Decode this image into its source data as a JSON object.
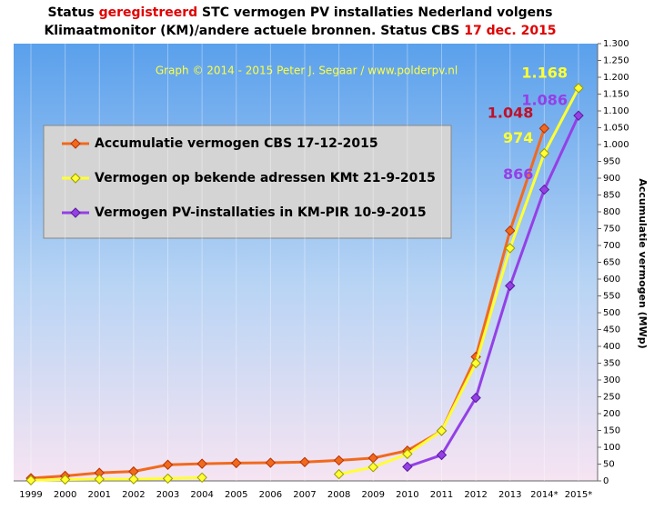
{
  "chart_data": {
    "type": "line",
    "title": {
      "line1": [
        "Status ",
        "geregistreerd",
        " STC vermogen PV installaties  Nederland volgens"
      ],
      "line2": [
        "Klimaatmonitor (KM)/andere actuele bronnen. Status CBS ",
        "17 dec. 2015"
      ]
    },
    "credit": "Graph © 2014 - 2015 Peter J. Segaar / www.polderpv.nl",
    "y_label": "Accumulatie vermogen (MWp)",
    "categories": [
      "1999",
      "2000",
      "2001",
      "2002",
      "2003",
      "2004",
      "2005",
      "2006",
      "2007",
      "2008",
      "2009",
      "2010",
      "2011",
      "2012",
      "2013",
      "2014*",
      "2015*"
    ],
    "series": [
      {
        "name": "Accumulatie vermogen CBS 17-12-2015",
        "color": "#f06a1e",
        "edge": "#b83000",
        "label_color": "#c0102a",
        "values": [
          8,
          15,
          24,
          28,
          48,
          51,
          53,
          54,
          56,
          61,
          68,
          90,
          149,
          369,
          744,
          1048,
          null
        ],
        "value_labels": [
          null,
          null,
          null,
          null,
          null,
          null,
          null,
          null,
          null,
          null,
          null,
          null,
          null,
          null,
          null,
          "1.048",
          null
        ]
      },
      {
        "name": "Vermogen op bekende adressen KMt 21-9-2015",
        "color": "#ffff33",
        "edge": "#9a9a00",
        "label_color": "#ffff33",
        "values": [
          2,
          4,
          5,
          5,
          7,
          10,
          null,
          null,
          null,
          20,
          41,
          80,
          149,
          350,
          692,
          974,
          1168
        ],
        "value_labels": [
          null,
          null,
          null,
          null,
          null,
          null,
          null,
          null,
          null,
          null,
          null,
          null,
          null,
          null,
          null,
          "974",
          "1.168"
        ]
      },
      {
        "name": "Vermogen PV-installaties in KM-PIR 10-9-2015",
        "color": "#9440e6",
        "edge": "#5a1a9a",
        "label_color": "#9440e6",
        "values": [
          null,
          null,
          null,
          null,
          null,
          null,
          null,
          null,
          null,
          null,
          null,
          42,
          77,
          247,
          580,
          866,
          1086
        ],
        "value_labels": [
          null,
          null,
          null,
          null,
          null,
          null,
          null,
          null,
          null,
          null,
          null,
          null,
          null,
          null,
          null,
          "866",
          "1.086"
        ]
      }
    ],
    "ylim": [
      0,
      1300
    ],
    "yticks": [
      0,
      50,
      100,
      150,
      200,
      250,
      300,
      350,
      400,
      450,
      500,
      550,
      600,
      650,
      700,
      750,
      800,
      850,
      900,
      950,
      {
        "value": 1000,
        "label": "1.000"
      },
      {
        "value": 1050,
        "label": "1.050"
      },
      {
        "value": 1100,
        "label": "1.100"
      },
      {
        "value": 1150,
        "label": "1.150"
      },
      {
        "value": 1200,
        "label": "1.200"
      },
      {
        "value": 1250,
        "label": "1.250"
      },
      {
        "value": 1300,
        "label": "1.300"
      }
    ],
    "y_axis_side": "right"
  }
}
